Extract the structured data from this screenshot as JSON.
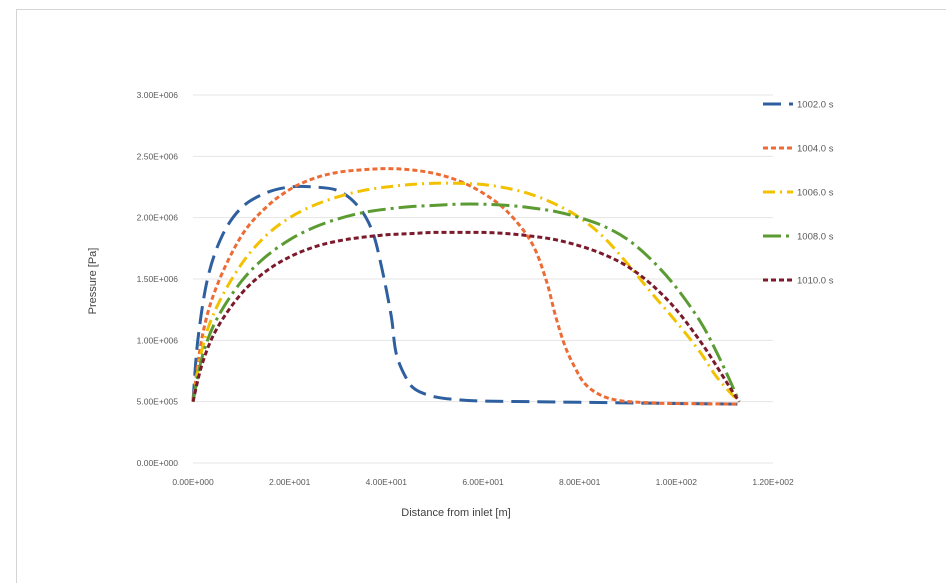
{
  "chart_data": {
    "type": "line",
    "title": "",
    "xlabel": "Distance from inlet [m]",
    "ylabel": "Pressure [Pa]",
    "xlim": [
      0,
      120
    ],
    "ylim": [
      0,
      3000000
    ],
    "x_ticks": [
      0,
      20,
      40,
      60,
      80,
      100,
      120
    ],
    "x_tick_labels": [
      "0.00E+000",
      "2.00E+001",
      "4.00E+001",
      "6.00E+001",
      "8.00E+001",
      "1.00E+002",
      "1.20E+002"
    ],
    "y_ticks": [
      0,
      500000,
      1000000,
      1500000,
      2000000,
      2500000,
      3000000
    ],
    "y_tick_labels": [
      "0.00E+000",
      "5.00E+005",
      "1.00E+006",
      "1.50E+006",
      "2.00E+006",
      "2.50E+006",
      "3.00E+006"
    ],
    "grid": "horizontal",
    "legend_position": "right",
    "series": [
      {
        "name": "1002.0 s",
        "color": "#2e5f9e",
        "dash": "long-dash",
        "x": [
          0,
          1,
          3,
          6,
          10,
          15,
          20,
          25,
          30,
          34,
          37,
          39,
          41,
          42,
          44,
          46,
          50,
          55,
          60,
          70,
          80,
          90,
          100,
          113
        ],
        "y": [
          500000,
          1000000,
          1500000,
          1850000,
          2080000,
          2200000,
          2250000,
          2250000,
          2220000,
          2100000,
          1900000,
          1600000,
          1200000,
          900000,
          700000,
          600000,
          540000,
          515000,
          505000,
          500000,
          495000,
          490000,
          485000,
          480000
        ]
      },
      {
        "name": "1004.0 s",
        "color": "#ed6b34",
        "dash": "short-dash",
        "x": [
          0,
          2,
          5,
          10,
          15,
          20,
          25,
          30,
          35,
          40,
          45,
          50,
          55,
          60,
          65,
          70,
          73,
          75,
          77,
          79,
          81,
          84,
          88,
          95,
          100,
          113
        ],
        "y": [
          500000,
          1050000,
          1450000,
          1850000,
          2080000,
          2230000,
          2320000,
          2370000,
          2390000,
          2400000,
          2390000,
          2360000,
          2300000,
          2200000,
          2050000,
          1800000,
          1500000,
          1200000,
          950000,
          780000,
          650000,
          560000,
          510000,
          490000,
          485000,
          480000
        ]
      },
      {
        "name": "1006.0 s",
        "color": "#f2c200",
        "dash": "dash-dot",
        "x": [
          0,
          2,
          5,
          10,
          15,
          20,
          25,
          30,
          35,
          40,
          45,
          50,
          55,
          60,
          65,
          70,
          75,
          80,
          85,
          90,
          95,
          100,
          105,
          108,
          111,
          113
        ],
        "y": [
          500000,
          950000,
          1280000,
          1620000,
          1850000,
          2000000,
          2100000,
          2170000,
          2220000,
          2250000,
          2270000,
          2280000,
          2280000,
          2270000,
          2240000,
          2190000,
          2110000,
          2000000,
          1840000,
          1620000,
          1380000,
          1150000,
          900000,
          720000,
          580000,
          500000
        ]
      },
      {
        "name": "1008.0 s",
        "color": "#5b9b32",
        "dash": "long-dash-dot",
        "x": [
          0,
          2,
          5,
          10,
          15,
          20,
          25,
          30,
          35,
          40,
          45,
          50,
          55,
          60,
          65,
          70,
          75,
          80,
          85,
          90,
          95,
          100,
          105,
          108,
          111,
          113
        ],
        "y": [
          500000,
          880000,
          1180000,
          1480000,
          1680000,
          1820000,
          1920000,
          1990000,
          2040000,
          2070000,
          2090000,
          2100000,
          2110000,
          2110000,
          2100000,
          2080000,
          2050000,
          2000000,
          1930000,
          1820000,
          1650000,
          1430000,
          1150000,
          930000,
          680000,
          500000
        ]
      },
      {
        "name": "1010.0 s",
        "color": "#7b1a2c",
        "dash": "short-dash",
        "x": [
          0,
          2,
          5,
          10,
          15,
          20,
          25,
          30,
          35,
          40,
          45,
          50,
          55,
          60,
          65,
          70,
          75,
          80,
          85,
          90,
          95,
          100,
          105,
          108,
          111,
          113
        ],
        "y": [
          500000,
          820000,
          1100000,
          1380000,
          1560000,
          1680000,
          1760000,
          1810000,
          1840000,
          1860000,
          1870000,
          1880000,
          1880000,
          1880000,
          1870000,
          1850000,
          1820000,
          1770000,
          1700000,
          1600000,
          1450000,
          1250000,
          990000,
          810000,
          620000,
          500000
        ]
      }
    ]
  }
}
